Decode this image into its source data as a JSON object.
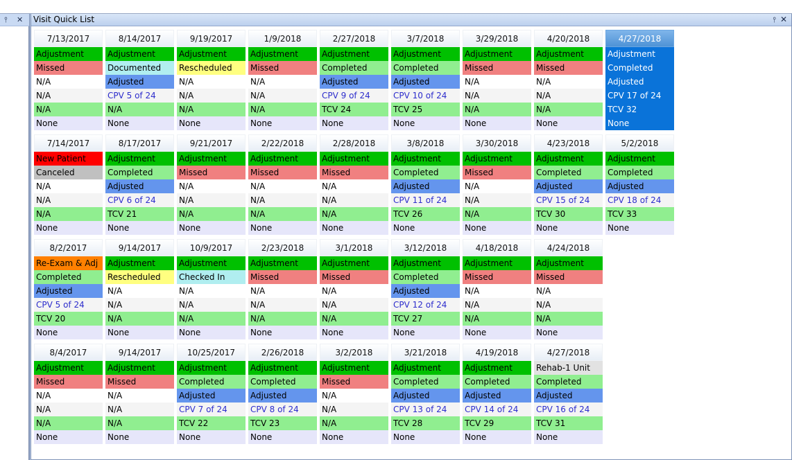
{
  "window": {
    "title": "Visit Quick List",
    "pin_icon": "pin-icon",
    "close_icon": "close-icon"
  },
  "colors": {
    "Adjustment": "#00c000",
    "New Patient": "#ff0000",
    "Re-Exam & Adj": "#ff8000",
    "Rehab-1 Unit": "#e2e2e2",
    "Missed": "#f08080",
    "Documented": "#b0eef0",
    "Rescheduled": "#ffff80",
    "Completed": "#90ee90",
    "Canceled": "#c0c0c0",
    "Checked In": "#b0eef0",
    "Adjusted": "#6495ed",
    "N/A_row5": "#90ee90",
    "TCV": "#90ee90"
  },
  "columns": [
    [
      {
        "date": "7/13/2017",
        "type": "Adjustment",
        "status": "Missed",
        "adj": "N/A",
        "cpv": "N/A",
        "tcv": "N/A",
        "note": "None"
      },
      {
        "date": "7/14/2017",
        "type": "New Patient",
        "status": "Canceled",
        "adj": "N/A",
        "cpv": "N/A",
        "tcv": "N/A",
        "note": "None"
      },
      {
        "date": "8/2/2017",
        "type": "Re-Exam & Adj",
        "status": "Completed",
        "adj": "Adjusted",
        "cpv": "CPV 5 of 24",
        "tcv": "TCV 20",
        "note": "None"
      },
      {
        "date": "8/4/2017",
        "type": "Adjustment",
        "status": "Missed",
        "adj": "N/A",
        "cpv": "N/A",
        "tcv": "N/A",
        "note": "None"
      }
    ],
    [
      {
        "date": "8/14/2017",
        "type": "Adjustment",
        "status": "Documented",
        "adj": "Adjusted",
        "cpv": "CPV 5 of 24",
        "tcv": "N/A",
        "note": "None"
      },
      {
        "date": "8/17/2017",
        "type": "Adjustment",
        "status": "Completed",
        "adj": "Adjusted",
        "cpv": "CPV 6 of 24",
        "tcv": "TCV 21",
        "note": "None"
      },
      {
        "date": "9/14/2017",
        "type": "Adjustment",
        "status": "Rescheduled",
        "adj": "N/A",
        "cpv": "N/A",
        "tcv": "N/A",
        "note": "None"
      },
      {
        "date": "9/14/2017",
        "type": "Adjustment",
        "status": "Missed",
        "adj": "N/A",
        "cpv": "N/A",
        "tcv": "N/A",
        "note": "None"
      }
    ],
    [
      {
        "date": "9/19/2017",
        "type": "Adjustment",
        "status": "Rescheduled",
        "adj": "N/A",
        "cpv": "N/A",
        "tcv": "N/A",
        "note": "None"
      },
      {
        "date": "9/21/2017",
        "type": "Adjustment",
        "status": "Missed",
        "adj": "N/A",
        "cpv": "N/A",
        "tcv": "N/A",
        "note": "None"
      },
      {
        "date": "10/9/2017",
        "type": "Adjustment",
        "status": "Checked In",
        "adj": "N/A",
        "cpv": "N/A",
        "tcv": "N/A",
        "note": "None"
      },
      {
        "date": "10/25/2017",
        "type": "Adjustment",
        "status": "Completed",
        "adj": "Adjusted",
        "cpv": "CPV 7 of 24",
        "tcv": "TCV 22",
        "note": "None"
      }
    ],
    [
      {
        "date": "1/9/2018",
        "type": "Adjustment",
        "status": "Missed",
        "adj": "N/A",
        "cpv": "N/A",
        "tcv": "N/A",
        "note": "None"
      },
      {
        "date": "2/22/2018",
        "type": "Adjustment",
        "status": "Missed",
        "adj": "N/A",
        "cpv": "N/A",
        "tcv": "N/A",
        "note": "None"
      },
      {
        "date": "2/23/2018",
        "type": "Adjustment",
        "status": "Missed",
        "adj": "N/A",
        "cpv": "N/A",
        "tcv": "N/A",
        "note": "None"
      },
      {
        "date": "2/26/2018",
        "type": "Adjustment",
        "status": "Completed",
        "adj": "Adjusted",
        "cpv": "CPV 8 of 24",
        "tcv": "TCV 23",
        "note": "None"
      }
    ],
    [
      {
        "date": "2/27/2018",
        "type": "Adjustment",
        "status": "Completed",
        "adj": "Adjusted",
        "cpv": "CPV 9 of 24",
        "tcv": "TCV 24",
        "note": "None"
      },
      {
        "date": "2/28/2018",
        "type": "Adjustment",
        "status": "Missed",
        "adj": "N/A",
        "cpv": "N/A",
        "tcv": "N/A",
        "note": "None"
      },
      {
        "date": "3/1/2018",
        "type": "Adjustment",
        "status": "Missed",
        "adj": "N/A",
        "cpv": "N/A",
        "tcv": "N/A",
        "note": "None"
      },
      {
        "date": "3/2/2018",
        "type": "Adjustment",
        "status": "Missed",
        "adj": "N/A",
        "cpv": "N/A",
        "tcv": "N/A",
        "note": "None"
      }
    ],
    [
      {
        "date": "3/7/2018",
        "type": "Adjustment",
        "status": "Completed",
        "adj": "Adjusted",
        "cpv": "CPV 10 of 24",
        "tcv": "TCV 25",
        "note": "None"
      },
      {
        "date": "3/8/2018",
        "type": "Adjustment",
        "status": "Completed",
        "adj": "Adjusted",
        "cpv": "CPV 11 of 24",
        "tcv": "TCV 26",
        "note": "None"
      },
      {
        "date": "3/12/2018",
        "type": "Adjustment",
        "status": "Completed",
        "adj": "Adjusted",
        "cpv": "CPV 12 of 24",
        "tcv": "TCV 27",
        "note": "None"
      },
      {
        "date": "3/21/2018",
        "type": "Adjustment",
        "status": "Completed",
        "adj": "Adjusted",
        "cpv": "CPV 13 of 24",
        "tcv": "TCV 28",
        "note": "None"
      }
    ],
    [
      {
        "date": "3/29/2018",
        "type": "Adjustment",
        "status": "Missed",
        "adj": "N/A",
        "cpv": "N/A",
        "tcv": "N/A",
        "note": "None"
      },
      {
        "date": "3/30/2018",
        "type": "Adjustment",
        "status": "Missed",
        "adj": "N/A",
        "cpv": "N/A",
        "tcv": "N/A",
        "note": "None"
      },
      {
        "date": "4/18/2018",
        "type": "Adjustment",
        "status": "Missed",
        "adj": "N/A",
        "cpv": "N/A",
        "tcv": "N/A",
        "note": "None"
      },
      {
        "date": "4/19/2018",
        "type": "Adjustment",
        "status": "Completed",
        "adj": "Adjusted",
        "cpv": "CPV 14 of 24",
        "tcv": "TCV 29",
        "note": "None"
      }
    ],
    [
      {
        "date": "4/20/2018",
        "type": "Adjustment",
        "status": "Missed",
        "adj": "N/A",
        "cpv": "N/A",
        "tcv": "N/A",
        "note": "None"
      },
      {
        "date": "4/23/2018",
        "type": "Adjustment",
        "status": "Completed",
        "adj": "Adjusted",
        "cpv": "CPV 15 of 24",
        "tcv": "TCV 30",
        "note": "None"
      },
      {
        "date": "4/24/2018",
        "type": "Adjustment",
        "status": "Missed",
        "adj": "N/A",
        "cpv": "N/A",
        "tcv": "N/A",
        "note": "None"
      },
      {
        "date": "4/27/2018",
        "type": "Rehab-1 Unit",
        "status": "Completed",
        "adj": "Adjusted",
        "cpv": "CPV 16 of 24",
        "tcv": "TCV 31",
        "note": "None"
      }
    ],
    [
      {
        "date": "4/27/2018",
        "type": "Adjustment",
        "status": "Completed",
        "adj": "Adjusted",
        "cpv": "CPV 17 of 24",
        "tcv": "TCV 32",
        "note": "None",
        "selected": true
      },
      {
        "date": "5/2/2018",
        "type": "Adjustment",
        "status": "Completed",
        "adj": "Adjusted",
        "cpv": "CPV 18 of 24",
        "tcv": "TCV 33",
        "note": "None"
      }
    ]
  ]
}
